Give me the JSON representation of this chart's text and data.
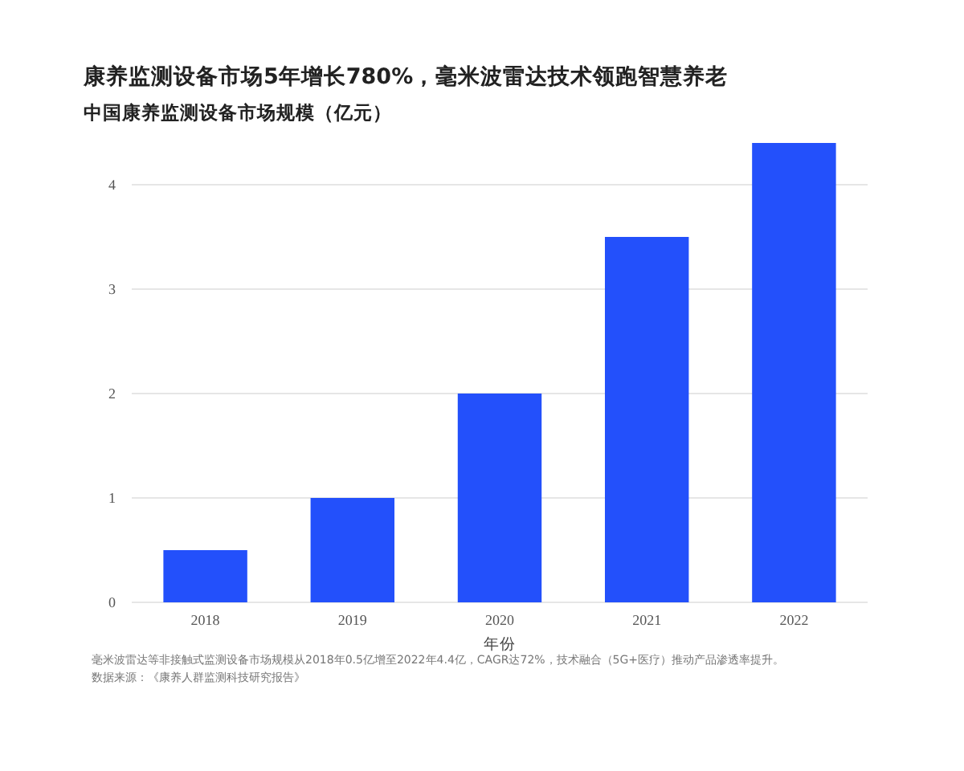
{
  "chart_data": {
    "type": "bar",
    "title": "康养监测设备市场5年增长780%，毫米波雷达技术领跑智慧养老",
    "subtitle": "中国康养监测设备市场规模（亿元）",
    "xlabel": "年份",
    "categories": [
      "2018",
      "2019",
      "2020",
      "2021",
      "2022"
    ],
    "values": [
      0.5,
      1,
      2,
      3.5,
      4.4
    ],
    "color": "#2350fb",
    "ylim": [
      0,
      4.4
    ],
    "yticks": [
      0,
      1,
      2,
      3,
      4
    ],
    "grid": "y",
    "annotations": [
      "毫米波雷达等非接触式监测设备市场规模从2018年0.5亿增至2022年4.4亿，CAGR达72%，技术融合（5G+医疗）推动产品渗透率提升。",
      "数据来源：《康养人群监测科技研究报告》"
    ]
  }
}
